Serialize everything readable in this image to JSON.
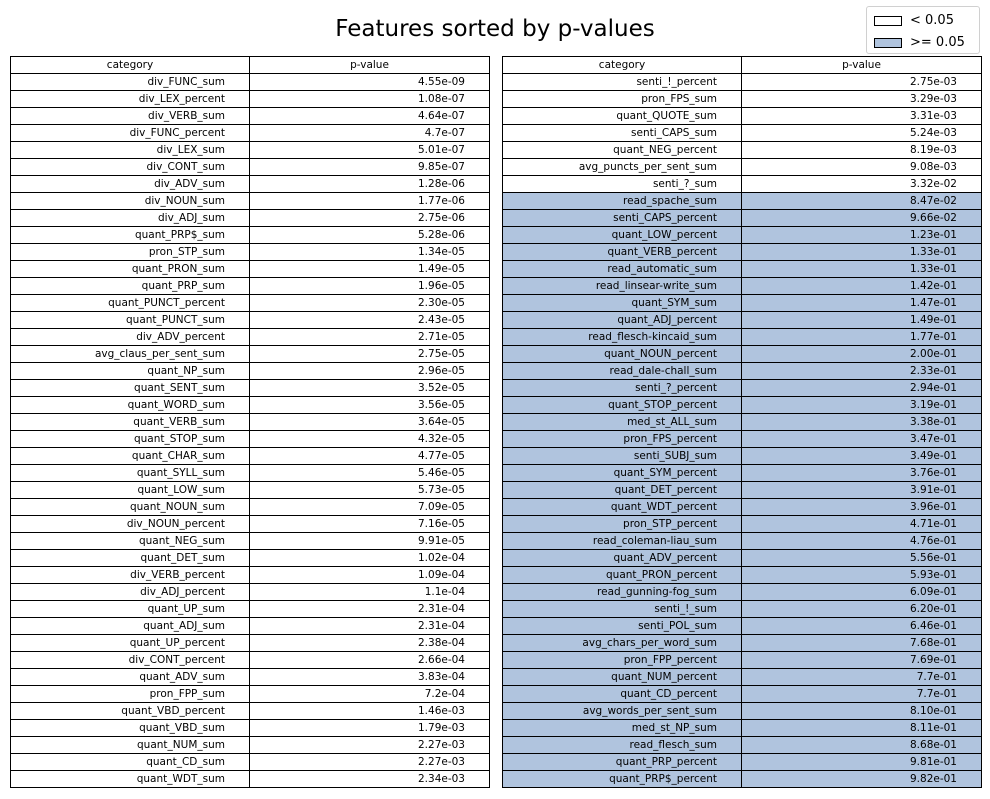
{
  "chart_data": {
    "type": "table",
    "title": "Features sorted by p-values",
    "threshold": 0.05,
    "legend": {
      "placement": "top-right",
      "entries": [
        {
          "label": "< 0.05",
          "color": "#ffffff"
        },
        {
          "label": ">= 0.05",
          "color": "#b0c4de"
        }
      ]
    },
    "columns": [
      "category",
      "p-value"
    ],
    "tables": [
      {
        "rows": [
          [
            "div_FUNC_sum",
            "4.55e-09"
          ],
          [
            "div_LEX_percent",
            "1.08e-07"
          ],
          [
            "div_VERB_sum",
            "4.64e-07"
          ],
          [
            "div_FUNC_percent",
            "4.7e-07"
          ],
          [
            "div_LEX_sum",
            "5.01e-07"
          ],
          [
            "div_CONT_sum",
            "9.85e-07"
          ],
          [
            "div_ADV_sum",
            "1.28e-06"
          ],
          [
            "div_NOUN_sum",
            "1.77e-06"
          ],
          [
            "div_ADJ_sum",
            "2.75e-06"
          ],
          [
            "quant_PRP$_sum",
            "5.28e-06"
          ],
          [
            "pron_STP_sum",
            "1.34e-05"
          ],
          [
            "quant_PRON_sum",
            "1.49e-05"
          ],
          [
            "quant_PRP_sum",
            "1.96e-05"
          ],
          [
            "quant_PUNCT_percent",
            "2.30e-05"
          ],
          [
            "quant_PUNCT_sum",
            "2.43e-05"
          ],
          [
            "div_ADV_percent",
            "2.71e-05"
          ],
          [
            "avg_claus_per_sent_sum",
            "2.75e-05"
          ],
          [
            "quant_NP_sum",
            "2.96e-05"
          ],
          [
            "quant_SENT_sum",
            "3.52e-05"
          ],
          [
            "quant_WORD_sum",
            "3.56e-05"
          ],
          [
            "quant_VERB_sum",
            "3.64e-05"
          ],
          [
            "quant_STOP_sum",
            "4.32e-05"
          ],
          [
            "quant_CHAR_sum",
            "4.77e-05"
          ],
          [
            "quant_SYLL_sum",
            "5.46e-05"
          ],
          [
            "quant_LOW_sum",
            "5.73e-05"
          ],
          [
            "quant_NOUN_sum",
            "7.09e-05"
          ],
          [
            "div_NOUN_percent",
            "7.16e-05"
          ],
          [
            "quant_NEG_sum",
            "9.91e-05"
          ],
          [
            "quant_DET_sum",
            "1.02e-04"
          ],
          [
            "div_VERB_percent",
            "1.09e-04"
          ],
          [
            "div_ADJ_percent",
            "1.1e-04"
          ],
          [
            "quant_UP_sum",
            "2.31e-04"
          ],
          [
            "quant_ADJ_sum",
            "2.31e-04"
          ],
          [
            "quant_UP_percent",
            "2.38e-04"
          ],
          [
            "div_CONT_percent",
            "2.66e-04"
          ],
          [
            "quant_ADV_sum",
            "3.83e-04"
          ],
          [
            "pron_FPP_sum",
            "7.2e-04"
          ],
          [
            "quant_VBD_percent",
            "1.46e-03"
          ],
          [
            "quant_VBD_sum",
            "1.79e-03"
          ],
          [
            "quant_NUM_sum",
            "2.27e-03"
          ],
          [
            "quant_CD_sum",
            "2.27e-03"
          ],
          [
            "quant_WDT_sum",
            "2.34e-03"
          ]
        ]
      },
      {
        "rows": [
          [
            "senti_!_percent",
            "2.75e-03"
          ],
          [
            "pron_FPS_sum",
            "3.29e-03"
          ],
          [
            "quant_QUOTE_sum",
            "3.31e-03"
          ],
          [
            "senti_CAPS_sum",
            "5.24e-03"
          ],
          [
            "quant_NEG_percent",
            "8.19e-03"
          ],
          [
            "avg_puncts_per_sent_sum",
            "9.08e-03"
          ],
          [
            "senti_?_sum",
            "3.32e-02"
          ],
          [
            "read_spache_sum",
            "8.47e-02"
          ],
          [
            "senti_CAPS_percent",
            "9.66e-02"
          ],
          [
            "quant_LOW_percent",
            "1.23e-01"
          ],
          [
            "quant_VERB_percent",
            "1.33e-01"
          ],
          [
            "read_automatic_sum",
            "1.33e-01"
          ],
          [
            "read_linsear-write_sum",
            "1.42e-01"
          ],
          [
            "quant_SYM_sum",
            "1.47e-01"
          ],
          [
            "quant_ADJ_percent",
            "1.49e-01"
          ],
          [
            "read_flesch-kincaid_sum",
            "1.77e-01"
          ],
          [
            "quant_NOUN_percent",
            "2.00e-01"
          ],
          [
            "read_dale-chall_sum",
            "2.33e-01"
          ],
          [
            "senti_?_percent",
            "2.94e-01"
          ],
          [
            "quant_STOP_percent",
            "3.19e-01"
          ],
          [
            "med_st_ALL_sum",
            "3.38e-01"
          ],
          [
            "pron_FPS_percent",
            "3.47e-01"
          ],
          [
            "senti_SUBJ_sum",
            "3.49e-01"
          ],
          [
            "quant_SYM_percent",
            "3.76e-01"
          ],
          [
            "quant_DET_percent",
            "3.91e-01"
          ],
          [
            "quant_WDT_percent",
            "3.96e-01"
          ],
          [
            "pron_STP_percent",
            "4.71e-01"
          ],
          [
            "read_coleman-liau_sum",
            "4.76e-01"
          ],
          [
            "quant_ADV_percent",
            "5.56e-01"
          ],
          [
            "quant_PRON_percent",
            "5.93e-01"
          ],
          [
            "read_gunning-fog_sum",
            "6.09e-01"
          ],
          [
            "senti_!_sum",
            "6.20e-01"
          ],
          [
            "senti_POL_sum",
            "6.46e-01"
          ],
          [
            "avg_chars_per_word_sum",
            "7.68e-01"
          ],
          [
            "pron_FPP_percent",
            "7.69e-01"
          ],
          [
            "quant_NUM_percent",
            "7.7e-01"
          ],
          [
            "quant_CD_percent",
            "7.7e-01"
          ],
          [
            "avg_words_per_sent_sum",
            "8.10e-01"
          ],
          [
            "med_st_NP_sum",
            "8.11e-01"
          ],
          [
            "read_flesch_sum",
            "8.68e-01"
          ],
          [
            "quant_PRP_percent",
            "9.81e-01"
          ],
          [
            "quant_PRP$_percent",
            "9.82e-01"
          ]
        ]
      }
    ]
  }
}
